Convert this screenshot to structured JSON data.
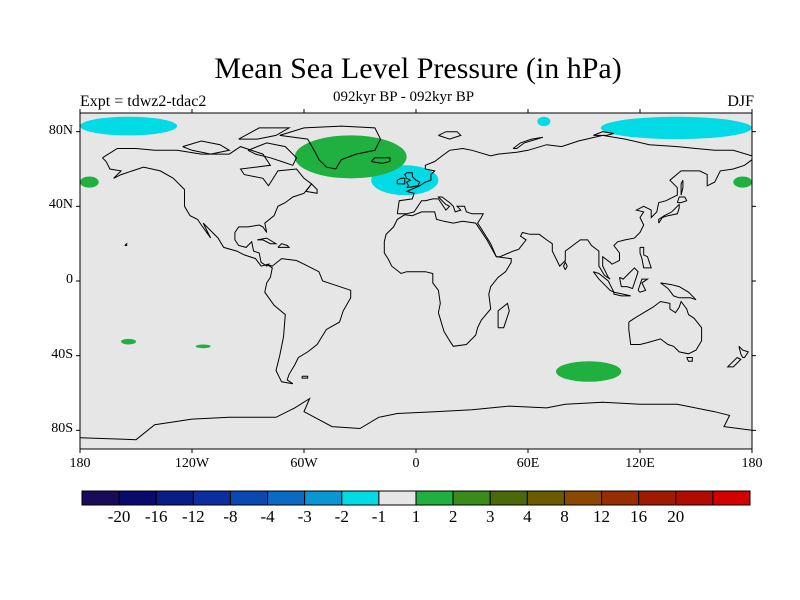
{
  "title": "Mean Sea Level Pressure (in hPa)",
  "subtitle": "092kyr BP - 092kyr BP",
  "left_label": "Expt = tdwz2-tdac2",
  "right_label": "DJF",
  "map": {
    "projection": "cylindrical equidistant",
    "lon_range": [
      -180,
      180
    ],
    "lat_range": [
      -90,
      90
    ],
    "background_color": "#e6e6e6",
    "coastline_color": "#000000"
  },
  "axes": {
    "y_ticks": [
      {
        "lat": 80,
        "label": "80N"
      },
      {
        "lat": 40,
        "label": "40N"
      },
      {
        "lat": 0,
        "label": "0"
      },
      {
        "lat": -40,
        "label": "40S"
      },
      {
        "lat": -80,
        "label": "80S"
      }
    ],
    "x_ticks": [
      {
        "lon": -180,
        "label": "180"
      },
      {
        "lon": -120,
        "label": "120W"
      },
      {
        "lon": -60,
        "label": "60W"
      },
      {
        "lon": 0,
        "label": "0"
      },
      {
        "lon": 60,
        "label": "60E"
      },
      {
        "lon": 120,
        "label": "120E"
      },
      {
        "lon": 180,
        "label": "180"
      }
    ]
  },
  "anomaly_regions": [
    {
      "name": "arctic-pacific-low",
      "sign": "negative",
      "color": "#00dbe6",
      "lon": [
        -180,
        -128
      ],
      "lat": [
        78,
        88
      ]
    },
    {
      "name": "arctic-east-low",
      "sign": "negative",
      "color": "#00dbe6",
      "lon": [
        99,
        180
      ],
      "lat": [
        76,
        88
      ]
    },
    {
      "name": "barents-low",
      "sign": "negative",
      "color": "#00dbe6",
      "lon": [
        65,
        72
      ],
      "lat": [
        83,
        88
      ]
    },
    {
      "name": "north-atlantic-low",
      "sign": "negative",
      "color": "#00dbe6",
      "lon": [
        -24,
        12
      ],
      "lat": [
        46,
        62
      ]
    },
    {
      "name": "greenland-high",
      "sign": "positive",
      "color": "#20b040",
      "lon": [
        -65,
        -5
      ],
      "lat": [
        55,
        78
      ]
    },
    {
      "name": "southern-ocean-high",
      "sign": "positive",
      "color": "#20b040",
      "lon": [
        75,
        110
      ],
      "lat": [
        -54,
        -43
      ]
    },
    {
      "name": "dateline-high",
      "sign": "positive",
      "color": "#20b040",
      "lon": [
        -180,
        -170
      ],
      "lat": [
        50,
        56
      ]
    },
    {
      "name": "east-siberia-high",
      "sign": "positive",
      "color": "#20b040",
      "lon": [
        170,
        180
      ],
      "lat": [
        50,
        56
      ]
    },
    {
      "name": "south-pacific-high-1",
      "sign": "positive",
      "color": "#20b040",
      "lon": [
        -158,
        -150
      ],
      "lat": [
        -34,
        -31
      ]
    },
    {
      "name": "south-pacific-high-2",
      "sign": "positive",
      "color": "#20b040",
      "lon": [
        -118,
        -110
      ],
      "lat": [
        -36,
        -34
      ]
    }
  ],
  "colorbar": {
    "colors": [
      "#1a0a5a",
      "#0a0a6e",
      "#0a1c86",
      "#0a2e9e",
      "#0a48b4",
      "#0a6ac4",
      "#0a96d2",
      "#00dbe6",
      "#e6e6e6",
      "#20b040",
      "#3a8a1c",
      "#4a6a0a",
      "#6a5a00",
      "#8a4800",
      "#962e00",
      "#a01a00",
      "#b00c00",
      "#d40000"
    ],
    "labels": [
      "-20",
      "-16",
      "-12",
      "-8",
      "-4",
      "-3",
      "-2",
      "-1",
      "1",
      "2",
      "3",
      "4",
      "8",
      "12",
      "16",
      "20"
    ]
  }
}
